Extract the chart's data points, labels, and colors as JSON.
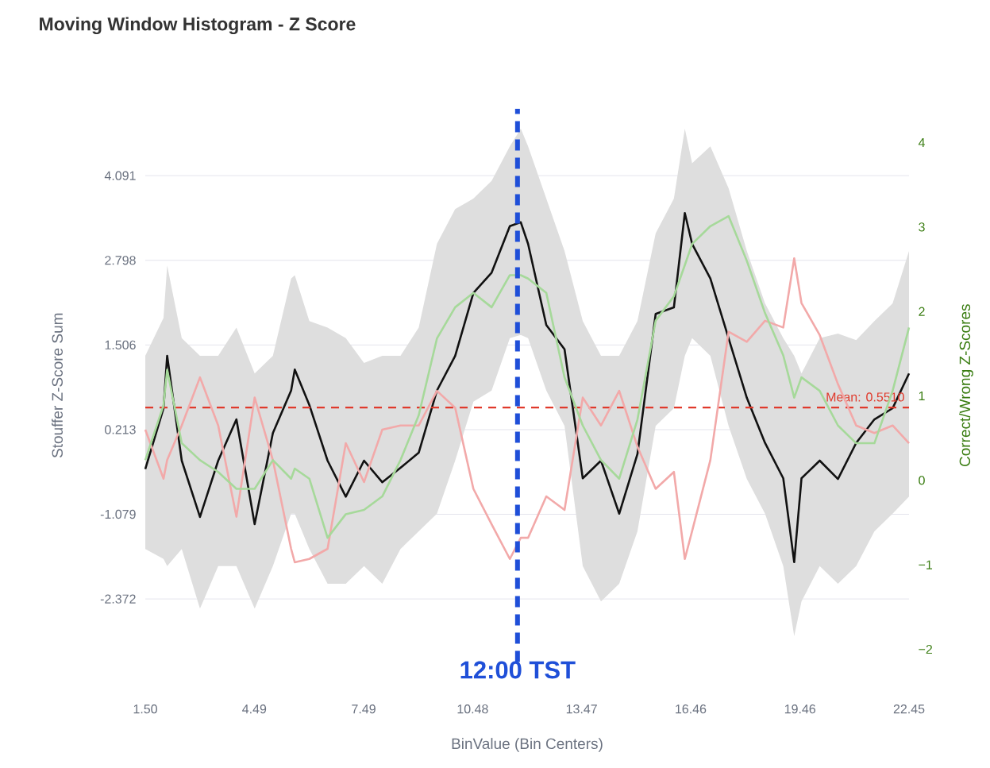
{
  "chart_data": {
    "type": "line",
    "title": "Moving Window Histogram - Z Score",
    "xlabel": "BinValue (Bin Centers)",
    "ylabel": "Stouffer Z-Score Sum",
    "y2label": "Correct/Wrong Z-Scores",
    "x": [
      1.5,
      2.0,
      2.1,
      2.5,
      3.0,
      3.5,
      4.0,
      4.5,
      5.0,
      5.5,
      5.6,
      6.0,
      6.5,
      7.0,
      7.5,
      8.0,
      8.5,
      9.0,
      9.5,
      10.0,
      10.5,
      11.0,
      11.5,
      11.8,
      12.0,
      12.5,
      13.0,
      13.5,
      14.0,
      14.5,
      15.0,
      15.5,
      16.0,
      16.3,
      16.5,
      17.0,
      17.5,
      18.0,
      18.5,
      19.0,
      19.3,
      19.5,
      20.0,
      20.5,
      21.0,
      21.5,
      22.0,
      22.45
    ],
    "series": [
      {
        "color": "#111111",
        "values": [
          -0.39,
          0.54,
          1.34,
          -0.26,
          -1.12,
          -0.26,
          0.37,
          -1.23,
          0.16,
          0.81,
          1.13,
          0.59,
          -0.26,
          -0.81,
          -0.26,
          -0.59,
          -0.37,
          -0.14,
          0.81,
          1.34,
          2.3,
          2.61,
          3.32,
          3.38,
          3.05,
          1.81,
          1.44,
          -0.53,
          -0.26,
          -1.07,
          -0.16,
          1.98,
          2.08,
          3.52,
          3.05,
          2.52,
          1.61,
          0.7,
          0.01,
          -0.53,
          -1.81,
          -0.53,
          -0.26,
          -0.54,
          0.01,
          0.37,
          0.54,
          1.07
        ],
        "upper": [
          1.34,
          1.92,
          2.72,
          1.61,
          1.34,
          1.34,
          1.77,
          1.07,
          1.34,
          2.52,
          2.57,
          1.87,
          1.77,
          1.61,
          1.23,
          1.34,
          1.34,
          1.77,
          3.05,
          3.58,
          3.74,
          4.01,
          4.54,
          4.81,
          4.54,
          3.74,
          2.94,
          1.87,
          1.34,
          1.34,
          1.87,
          3.21,
          3.74,
          4.81,
          4.28,
          4.54,
          3.9,
          2.94,
          2.14,
          1.61,
          1.34,
          1.07,
          1.61,
          1.68,
          1.58,
          1.87,
          2.14,
          2.94
        ],
        "lower": [
          -1.61,
          -1.76,
          -1.87,
          -1.61,
          -2.52,
          -1.87,
          -1.87,
          -2.52,
          -1.87,
          -1.07,
          -1.07,
          -1.61,
          -2.14,
          -2.14,
          -1.87,
          -2.14,
          -1.61,
          -1.34,
          -1.07,
          -0.26,
          0.64,
          0.81,
          1.61,
          1.66,
          1.61,
          0.81,
          0.27,
          -1.87,
          -2.41,
          -2.14,
          -1.34,
          0.27,
          0.54,
          1.34,
          1.61,
          1.34,
          0.27,
          -0.54,
          -1.07,
          -1.87,
          -2.94,
          -2.41,
          -1.87,
          -2.14,
          -1.87,
          -1.34,
          -1.07,
          -0.81
        ]
      },
      {
        "color": "#a6d99a",
        "axis": "y2",
        "values": [
          0.24,
          0.89,
          1.31,
          0.44,
          0.24,
          0.1,
          -0.1,
          -0.1,
          0.24,
          0.02,
          0.14,
          0.02,
          -0.68,
          -0.4,
          -0.35,
          -0.19,
          0.24,
          0.77,
          1.68,
          2.05,
          2.22,
          2.05,
          2.43,
          2.43,
          2.39,
          2.22,
          1.22,
          0.65,
          0.24,
          0.02,
          0.72,
          1.89,
          2.18,
          2.55,
          2.8,
          3.01,
          3.13,
          2.6,
          1.98,
          1.48,
          0.98,
          1.22,
          1.06,
          0.65,
          0.44,
          0.44,
          1.06,
          1.81
        ]
      },
      {
        "color": "#f2a9a9",
        "axis": "y2",
        "values": [
          0.6,
          0.02,
          0.24,
          0.65,
          1.22,
          0.65,
          -0.43,
          0.98,
          0.24,
          -0.81,
          -0.97,
          -0.93,
          -0.81,
          0.44,
          -0.02,
          0.6,
          0.65,
          0.65,
          1.06,
          0.86,
          -0.1,
          -0.52,
          -0.93,
          -0.68,
          -0.68,
          -0.19,
          -0.35,
          0.98,
          0.65,
          1.06,
          0.4,
          -0.1,
          0.1,
          -0.93,
          -0.6,
          0.24,
          1.76,
          1.64,
          1.89,
          1.81,
          2.63,
          2.1,
          1.72,
          1.14,
          0.65,
          0.56,
          0.65,
          0.44
        ]
      }
    ],
    "xlim": [
      1.5,
      22.45
    ],
    "xticks": [
      {
        "value": 1.5,
        "label": "1.50"
      },
      4.49,
      7.49,
      10.48,
      13.47,
      16.46,
      19.46,
      22.45
    ],
    "ylim": [
      -3.334,
      5.112
    ],
    "yticks": [
      4.091,
      2.798,
      1.506,
      0.213,
      -1.079,
      -2.372
    ],
    "y2lim": [
      -2.15,
      4.4
    ],
    "y2ticks": [
      {
        "value": -2,
        "label": "−2"
      },
      {
        "value": -1,
        "label": "−1"
      },
      0,
      1,
      2,
      3,
      4
    ],
    "grid": "y",
    "line_style": "solid",
    "ref_lines": [
      {
        "axis": "y",
        "value": 0.551,
        "label": "Mean: 0.5510",
        "color": "#e03a2c",
        "line_style": "dashed"
      },
      {
        "axis": "x",
        "value": 11.71,
        "label": "12:00 TST",
        "color": "#1f4fd8",
        "line_style": "dashed"
      }
    ]
  }
}
